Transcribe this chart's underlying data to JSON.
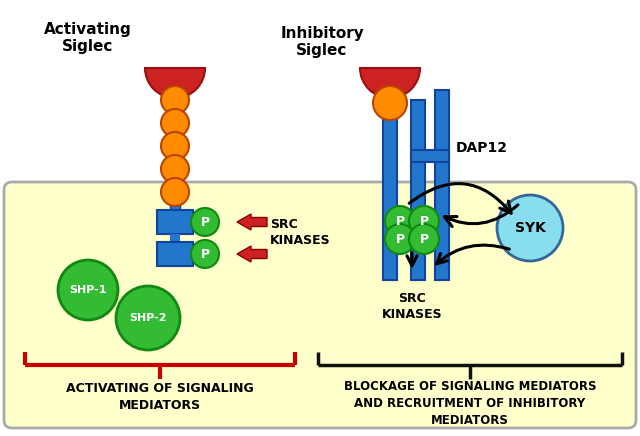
{
  "fig_width": 6.4,
  "fig_height": 4.36,
  "bg_outer": "#ffffff",
  "bg_cell": "#ffffcc",
  "cell_border": "#aaaaaa",
  "orange_color": "#FF8C00",
  "red_shape": "#CC2222",
  "blue_color": "#2277CC",
  "green_circle": "#33BB33",
  "green_dark": "#118811",
  "syk_color": "#88DDEE",
  "text_color": "#000000",
  "red_bracket": "#CC0000",
  "black_bracket": "#111111",
  "activating_label": "Activating\nSiglec",
  "inhibitory_label": "Inhibitory\nSiglec",
  "dap12_label": "DAP12",
  "src_kinases_left": "SRC\nKINASES",
  "src_kinases_right": "SRC\nKINASES",
  "shp1_label": "SHP-1",
  "shp2_label": "SHP-2",
  "syk_label": "SYK",
  "p_label": "P",
  "bottom_left_label": "ACTIVATING OF SIGNALING\nMEDIATORS",
  "bottom_right_label": "BLOCKAGE OF SIGNALING MEDIATORS\nAND RECRUITMENT OF INHIBITORY\nMEDIATORS"
}
